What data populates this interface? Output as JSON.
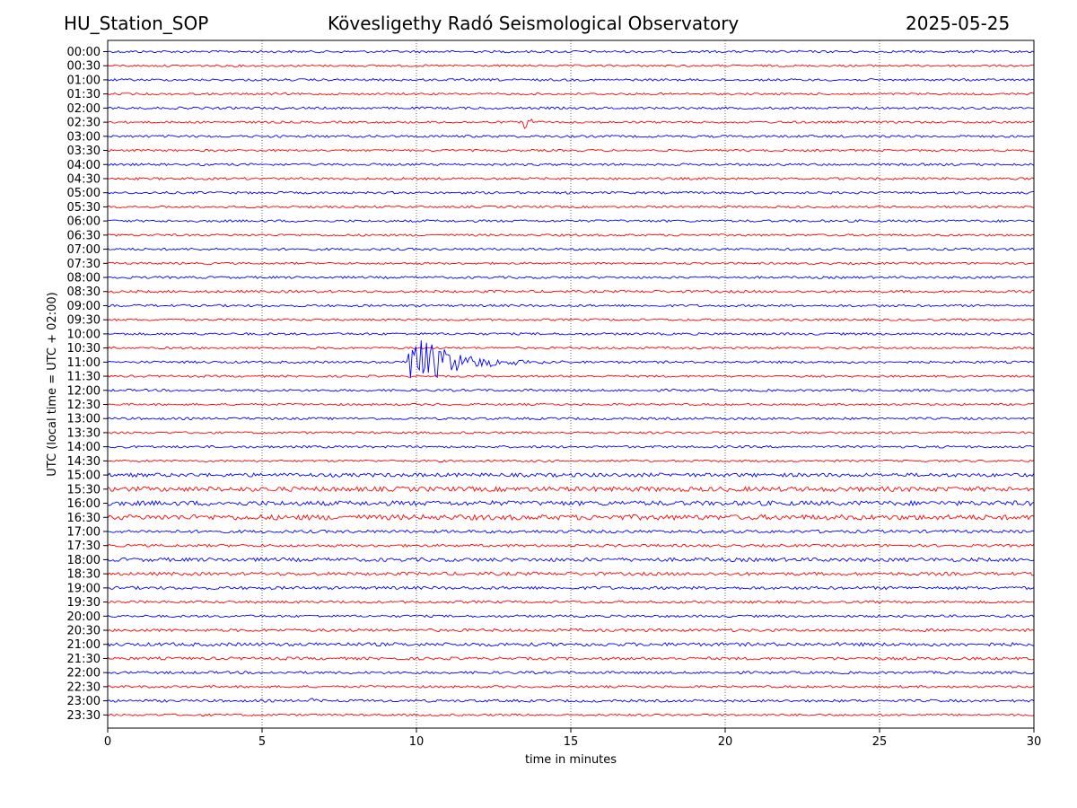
{
  "header": {
    "station": "HU_Station_SOP",
    "observatory": "Kövesligethy Radó Seismological Observatory",
    "date": "2025-05-25"
  },
  "chart_data": {
    "type": "line",
    "title": "Kövesligethy Radó Seismological Observatory",
    "xlabel": "time in minutes",
    "ylabel": "UTC (local time = UTC + 02:00)",
    "xlim": [
      0,
      30
    ],
    "xticks": [
      0,
      5,
      10,
      15,
      20,
      25,
      30
    ],
    "grid": "vertical dotted at x ticks",
    "rows": [
      "00:00",
      "00:30",
      "01:00",
      "01:30",
      "02:00",
      "02:30",
      "03:00",
      "03:30",
      "04:00",
      "04:30",
      "05:00",
      "05:30",
      "06:00",
      "06:30",
      "07:00",
      "07:30",
      "08:00",
      "08:30",
      "09:00",
      "09:30",
      "10:00",
      "10:30",
      "11:00",
      "11:30",
      "12:00",
      "12:30",
      "13:00",
      "13:30",
      "14:00",
      "14:30",
      "15:00",
      "15:30",
      "16:00",
      "16:30",
      "17:00",
      "17:30",
      "18:00",
      "18:30",
      "19:00",
      "19:30",
      "20:00",
      "20:30",
      "21:00",
      "21:30",
      "22:00",
      "22:30",
      "23:00",
      "23:30"
    ],
    "colors": [
      "#0000ff",
      "#ff0000"
    ],
    "noise_levels": [
      1,
      0.9,
      1,
      0.9,
      1,
      0.9,
      1,
      0.9,
      1,
      1,
      1,
      0.9,
      1,
      0.9,
      1,
      0.9,
      1,
      1.1,
      1,
      0.9,
      1,
      0.9,
      1,
      0.9,
      1,
      0.9,
      1,
      0.9,
      1,
      0.9,
      1.6,
      2.0,
      2.0,
      2.2,
      1.3,
      1.1,
      1.6,
      1.4,
      1.3,
      1.1,
      1,
      1.2,
      1.5,
      1.2,
      1.1,
      1,
      1.1,
      0.9
    ],
    "events": [
      {
        "row": "02:30",
        "start_min": 13.5,
        "amplitude": 8,
        "duration_min": 1.5
      },
      {
        "row": "11:00",
        "start_min": 9.7,
        "amplitude": 40,
        "duration_min": 5.5
      },
      {
        "row": "23:00",
        "start_min": 6.5,
        "amplitude": 3,
        "duration_min": 3
      }
    ]
  }
}
